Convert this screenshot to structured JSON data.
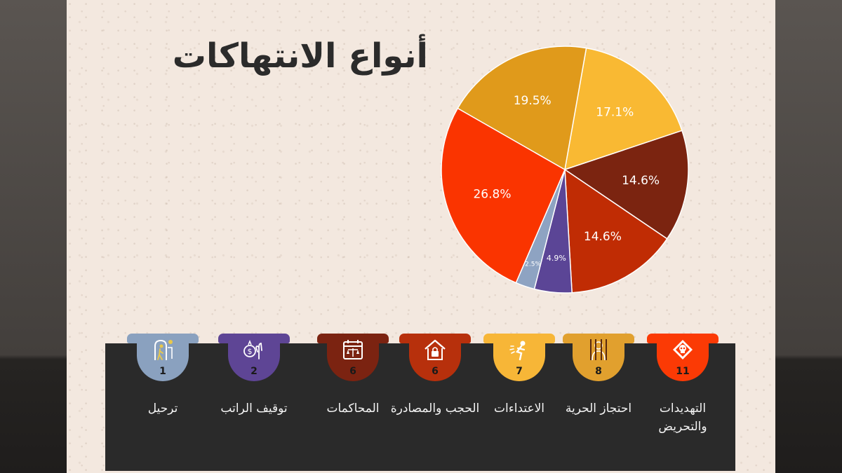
{
  "title": "أنواع الانتهاكات",
  "chart_data": {
    "type": "pie",
    "title": "أنواع الانتهاكات",
    "slices": [
      {
        "label": "",
        "value": 17.1,
        "value_label": "17.1%",
        "color": "#f9b933"
      },
      {
        "label": "",
        "value": 14.6,
        "value_label": "14.6%",
        "color": "#7b2410"
      },
      {
        "label": "",
        "value": 14.6,
        "value_label": "14.6%",
        "color": "#c02c04"
      },
      {
        "label": "",
        "value": 4.9,
        "value_label": "4.9%",
        "color": "#5b4596"
      },
      {
        "label": "",
        "value": 2.5,
        "value_label": "2.5%",
        "color": "#8ea3c2"
      },
      {
        "label": "",
        "value": 26.8,
        "value_label": "26.8%",
        "color": "#fa3400"
      },
      {
        "label": "",
        "value": 19.5,
        "value_label": "19.5%",
        "color": "#e09a1b"
      }
    ]
  },
  "categories": [
    {
      "label": "التهديدات والتحريض",
      "count": "11",
      "color": "#fb3a05",
      "icon": "toxic-skull-icon"
    },
    {
      "label": "احتجاز الحرية",
      "count": "8",
      "color": "#e1a02e",
      "icon": "prisoner-icon"
    },
    {
      "label": "الاعتداءات",
      "count": "7",
      "color": "#f7b637",
      "icon": "assault-icon"
    },
    {
      "label": "الحجب والمصادرة",
      "count": "6",
      "color": "#b7300c",
      "icon": "locked-house-icon"
    },
    {
      "label": "المحاكمات",
      "count": "6",
      "color": "#7b2311",
      "icon": "court-scales-icon"
    },
    {
      "label": "توقيف الراتب",
      "count": "2",
      "color": "#5e4595",
      "icon": "salary-stop-icon"
    },
    {
      "label": "ترحيل",
      "count": "1",
      "color": "#8aa1bf",
      "icon": "deportation-icon"
    }
  ]
}
